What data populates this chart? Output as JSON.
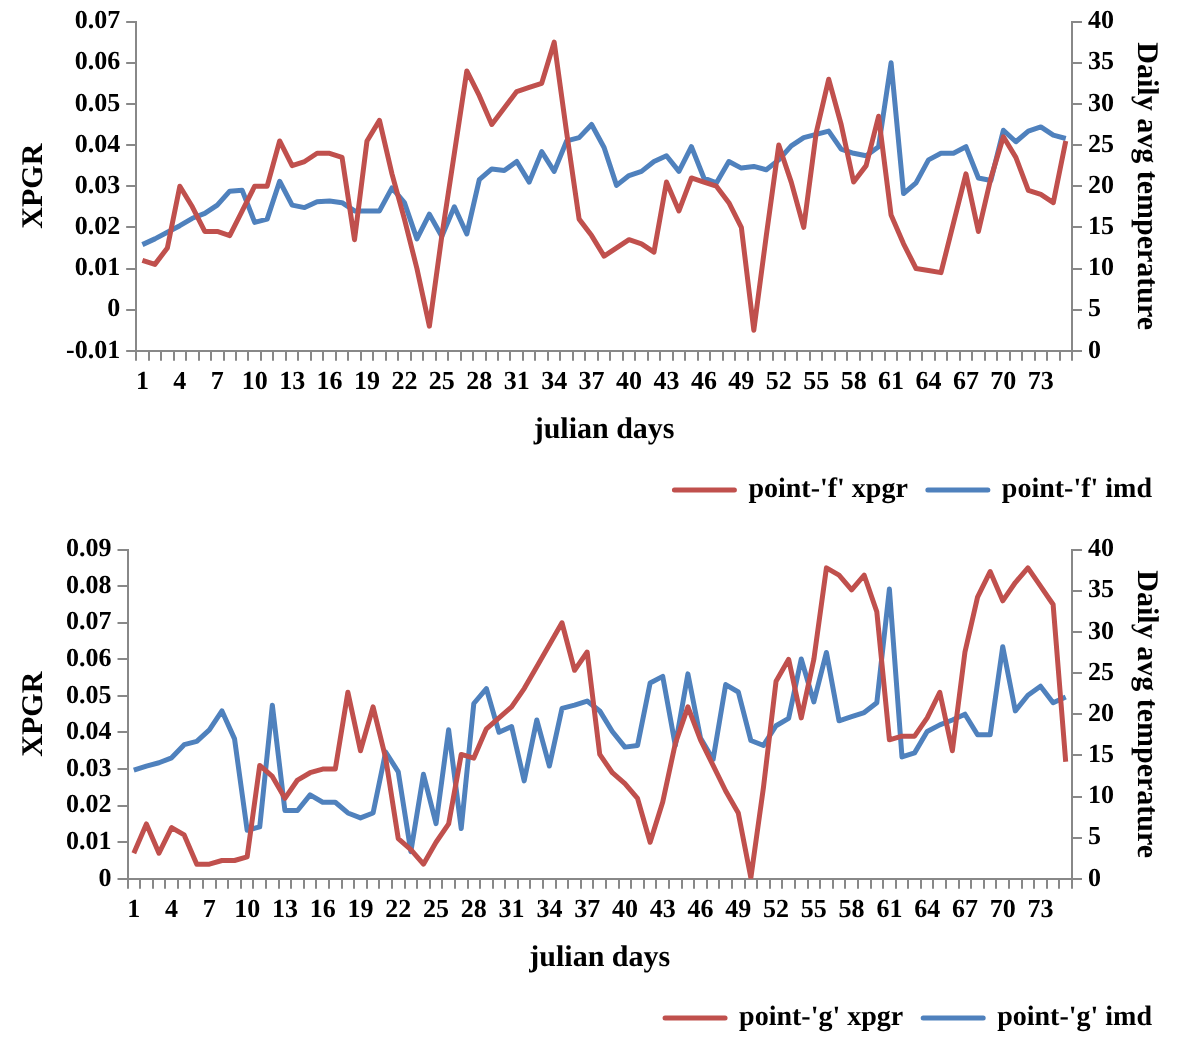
{
  "chart_data": [
    {
      "type": "line",
      "xlabel": "julian days",
      "ylabel": "XPGR",
      "y2label": "Daily avg temperature",
      "categories": [
        "1",
        null,
        null,
        "4",
        null,
        null,
        "7",
        null,
        null,
        "10",
        null,
        null,
        "13",
        null,
        null,
        "16",
        null,
        null,
        "19",
        null,
        null,
        "22",
        null,
        null,
        "25",
        null,
        null,
        "28",
        null,
        null,
        "31",
        null,
        null,
        "34",
        null,
        null,
        "37",
        null,
        null,
        "40",
        null,
        null,
        "43",
        null,
        null,
        "46",
        null,
        null,
        "49",
        null,
        null,
        "52",
        null,
        null,
        "55",
        null,
        null,
        "58",
        null,
        null,
        "61",
        null,
        null,
        "64",
        null,
        null,
        "67",
        null,
        null,
        "70",
        null,
        null,
        "73",
        null,
        null
      ],
      "series": [
        {
          "name": "point-'f' xpgr",
          "color": "#c0504d",
          "values": [
            0.012,
            0.011,
            0.015,
            0.03,
            0.025,
            0.019,
            0.019,
            0.018,
            0.024,
            0.03,
            0.03,
            0.041,
            0.035,
            0.036,
            0.038,
            0.038,
            0.037,
            0.017,
            0.041,
            0.046,
            0.033,
            0.022,
            0.01,
            -0.004,
            0.018,
            0.038,
            0.058,
            0.052,
            0.045,
            0.049,
            0.053,
            0.054,
            0.055,
            0.065,
            0.043,
            0.022,
            0.018,
            0.013,
            0.015,
            0.017,
            0.016,
            0.014,
            0.031,
            0.024,
            0.032,
            0.031,
            0.03,
            0.026,
            0.02,
            -0.005,
            0.018,
            0.04,
            0.031,
            0.02,
            0.043,
            0.056,
            0.045,
            0.031,
            0.035,
            0.047,
            0.023,
            0.016,
            0.01,
            0.0095,
            0.009,
            0.021,
            0.033,
            0.019,
            0.032,
            0.042,
            0.037,
            0.029,
            0.028,
            0.026,
            0.041
          ]
        },
        {
          "name": "point-'f' imd",
          "color": "#4f81bd",
          "axis": "y2",
          "values": [
            12.9,
            13.6,
            14.4,
            15.2,
            16.1,
            16.7,
            17.7,
            19.4,
            19.5,
            15.6,
            16,
            20.6,
            17.7,
            17.4,
            18.1,
            18.2,
            18,
            17,
            17,
            17,
            19.8,
            18,
            13.6,
            16.6,
            13.9,
            17.5,
            14.2,
            20.8,
            22.1,
            21.9,
            23,
            20.5,
            24.2,
            21.8,
            25.5,
            25.9,
            27.5,
            24.7,
            20.1,
            21.3,
            21.8,
            23,
            23.7,
            21.8,
            24.8,
            21,
            20.4,
            23,
            22.2,
            22.4,
            22,
            23.2,
            24.9,
            25.9,
            26.3,
            26.7,
            24.5,
            24,
            23.7,
            24.8,
            35,
            19.1,
            20.4,
            23.2,
            24,
            24,
            24.8,
            21,
            20.7,
            26.8,
            25.4,
            26.7,
            27.2,
            26.2,
            25.8
          ]
        }
      ],
      "ylim": [
        -0.01,
        0.07
      ],
      "yticks": [
        -0.01,
        0,
        0.01,
        0.02,
        0.03,
        0.04,
        0.05,
        0.06,
        0.07
      ],
      "y2lim": [
        0,
        40
      ],
      "y2ticks": [
        0,
        5,
        10,
        15,
        20,
        25,
        30,
        35,
        40
      ],
      "legend": "bottom right",
      "marker": "none",
      "line_style": "solid"
    },
    {
      "type": "line",
      "xlabel": "julian days",
      "ylabel": "XPGR",
      "y2label": "Daily avg temperature",
      "categories": [
        "1",
        null,
        null,
        "4",
        null,
        null,
        "7",
        null,
        null,
        "10",
        null,
        null,
        "13",
        null,
        null,
        "16",
        null,
        null,
        "19",
        null,
        null,
        "22",
        null,
        null,
        "25",
        null,
        null,
        "28",
        null,
        null,
        "31",
        null,
        null,
        "34",
        null,
        null,
        "37",
        null,
        null,
        "40",
        null,
        null,
        "43",
        null,
        null,
        "46",
        null,
        null,
        "49",
        null,
        null,
        "52",
        null,
        null,
        "55",
        null,
        null,
        "58",
        null,
        null,
        "61",
        null,
        null,
        "64",
        null,
        null,
        "67",
        null,
        null,
        "70",
        null,
        null,
        "73",
        null,
        null
      ],
      "series": [
        {
          "name": "point-'g' xpgr",
          "color": "#c0504d",
          "values": [
            0.007,
            0.015,
            0.007,
            0.014,
            0.012,
            0.004,
            0.004,
            0.005,
            0.005,
            0.006,
            0.031,
            0.028,
            0.022,
            0.027,
            0.029,
            0.03,
            0.03,
            0.051,
            0.035,
            0.047,
            0.033,
            0.011,
            0.008,
            0.004,
            0.01,
            0.015,
            0.034,
            0.033,
            0.041,
            0.044,
            0.047,
            0.052,
            0.058,
            0.064,
            0.07,
            0.057,
            0.062,
            0.034,
            0.029,
            0.026,
            0.022,
            0.01,
            0.021,
            0.037,
            0.047,
            0.038,
            0.031,
            0.024,
            0.018,
            0.0003,
            0.025,
            0.054,
            0.06,
            0.044,
            0.06,
            0.085,
            0.083,
            0.079,
            0.083,
            0.073,
            0.038,
            0.039,
            0.039,
            0.044,
            0.051,
            0.035,
            0.062,
            0.077,
            0.084,
            0.076,
            0.081,
            0.085,
            0.08,
            0.075,
            0.032
          ]
        },
        {
          "name": "point-'g' imd",
          "color": "#4f81bd",
          "axis": "y2",
          "values": [
            13.2,
            13.7,
            14.1,
            14.7,
            16.3,
            16.7,
            18.1,
            20.4,
            17,
            5.9,
            6.3,
            21.1,
            8.3,
            8.3,
            10.2,
            9.3,
            9.3,
            8,
            7.4,
            8,
            15.4,
            13,
            3.3,
            12.7,
            6.7,
            18.1,
            6.1,
            21.3,
            23.1,
            17.8,
            18.5,
            11.9,
            19.3,
            13.7,
            20.7,
            21.1,
            21.6,
            20.4,
            17.9,
            16,
            16.2,
            23.8,
            24.6,
            16.2,
            24.9,
            17.1,
            14.5,
            23.6,
            22.7,
            16.8,
            16.2,
            18.6,
            19.5,
            26.7,
            21.5,
            27.5,
            19.2,
            19.7,
            20.2,
            21.4,
            35.2,
            14.8,
            15.3,
            17.9,
            18.7,
            19.3,
            20,
            17.5,
            17.5,
            28.2,
            20.4,
            22.3,
            23.4,
            21.4,
            22.1
          ]
        }
      ],
      "ylim": [
        0,
        0.09
      ],
      "yticks": [
        0,
        0.01,
        0.02,
        0.03,
        0.04,
        0.05,
        0.06,
        0.07,
        0.08,
        0.09
      ],
      "y2lim": [
        0,
        40
      ],
      "y2ticks": [
        0,
        5,
        10,
        15,
        20,
        25,
        30,
        35,
        40
      ],
      "legend": "bottom right",
      "marker": "none",
      "line_style": "solid"
    }
  ]
}
